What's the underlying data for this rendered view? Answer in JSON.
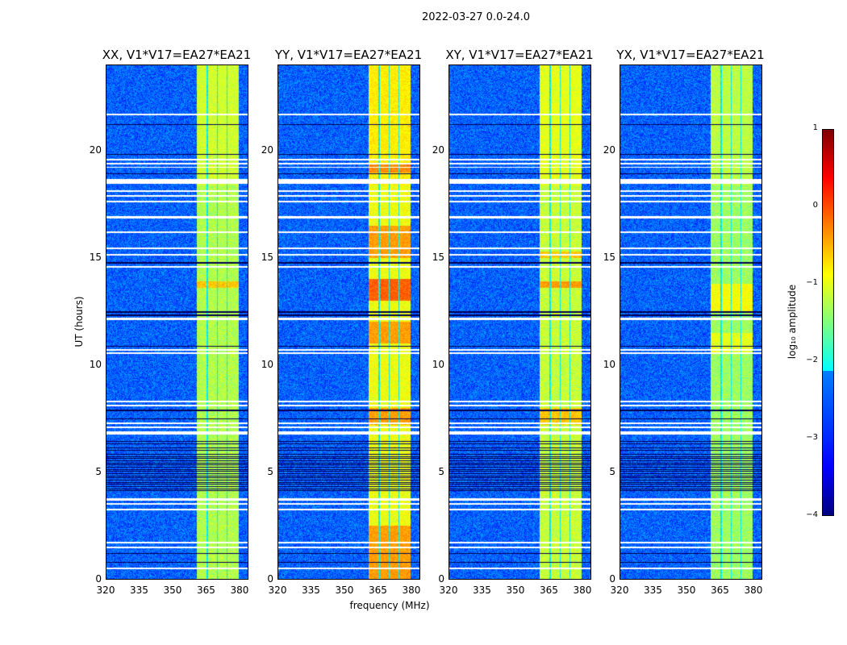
{
  "figure_title": "2022-03-27 0.0-24.0",
  "chart_data": {
    "type": "heatmap",
    "title": "2022-03-27 0.0-24.0",
    "xlabel": "frequency (MHz)",
    "ylabel": "UT (hours)",
    "xlim": [
      320,
      384
    ],
    "ylim": [
      0,
      24
    ],
    "xticks": [
      "320",
      "335",
      "350",
      "365",
      "380"
    ],
    "xtick_values": [
      320,
      335,
      350,
      365,
      380
    ],
    "yticks": [
      "0",
      "5",
      "10",
      "15",
      "20"
    ],
    "ytick_values": [
      0,
      5,
      10,
      15,
      20
    ],
    "panels": [
      {
        "title": "XX, V1*V17=EA27*EA21",
        "band_level": -1.1,
        "hot": [
          [
            13.6,
            13.9,
            -0.6
          ]
        ]
      },
      {
        "title": "YY, V1*V17=EA27*EA21",
        "band_level": -0.8,
        "hot": [
          [
            0,
            2.5,
            -0.4
          ],
          [
            7.2,
            8.0,
            -0.4
          ],
          [
            11,
            12,
            -0.4
          ],
          [
            13,
            14,
            -0.1
          ],
          [
            15,
            16.5,
            -0.4
          ],
          [
            19,
            19.4,
            -0.3
          ]
        ]
      },
      {
        "title": "XY, V1*V17=EA27*EA21",
        "band_level": -1.0,
        "hot": [
          [
            13.6,
            13.9,
            -0.4
          ],
          [
            7.2,
            8.0,
            -0.6
          ],
          [
            15,
            15.3,
            -0.6
          ]
        ]
      },
      {
        "title": "YX, V1*V17=EA27*EA21",
        "band_level": -1.2,
        "hot": [
          [
            12.5,
            13.8,
            -0.9
          ],
          [
            10.6,
            11.5,
            -1.0
          ]
        ]
      }
    ],
    "background_level": -2.9,
    "band_channels_mhz": [
      [
        361,
        365.5
      ],
      [
        366,
        370
      ],
      [
        370.5,
        374.5
      ],
      [
        375,
        380
      ]
    ],
    "flagged_hours": [
      [
        21.65,
        21.75
      ],
      [
        19.55,
        19.62
      ],
      [
        19.38,
        19.45
      ],
      [
        19.2,
        19.27
      ],
      [
        18.45,
        18.7
      ],
      [
        18.1,
        18.17
      ],
      [
        17.85,
        17.92
      ],
      [
        17.6,
        17.67
      ],
      [
        16.85,
        16.95
      ],
      [
        16.15,
        16.22
      ],
      [
        15.4,
        15.47
      ],
      [
        15.1,
        15.17
      ],
      [
        14.55,
        14.62
      ],
      [
        12.1,
        12.2
      ],
      [
        10.65,
        10.75
      ],
      [
        10.5,
        10.57
      ],
      [
        8.25,
        8.32
      ],
      [
        8.05,
        8.12
      ],
      [
        7.25,
        7.32
      ],
      [
        7.05,
        7.12
      ],
      [
        6.75,
        6.9
      ],
      [
        3.65,
        3.75
      ],
      [
        3.45,
        3.55
      ],
      [
        3.2,
        3.27
      ],
      [
        1.65,
        1.72
      ],
      [
        1.45,
        1.52
      ],
      [
        0.45,
        0.52
      ]
    ],
    "dark_hours": [
      [
        21.2,
        21.25
      ],
      [
        19.8,
        19.85
      ],
      [
        18.9,
        18.95
      ],
      [
        14.75,
        14.8
      ],
      [
        12.45,
        12.5
      ],
      [
        12.3,
        12.35
      ],
      [
        10.85,
        10.9
      ],
      [
        7.85,
        7.9
      ],
      [
        7.45,
        7.5
      ],
      [
        1.15,
        1.2
      ],
      [
        0.75,
        0.8
      ]
    ],
    "dark_region_hours": [
      4.1,
      6.5
    ],
    "colorbar": {
      "label": "log₁₀ amplitude",
      "range": [
        -4,
        1
      ],
      "ticks": [
        "1",
        "0",
        "−1",
        "−2",
        "−3",
        "−4"
      ],
      "tick_values": [
        1,
        0,
        -1,
        -2,
        -3,
        -4
      ],
      "colormap": "jet"
    }
  }
}
